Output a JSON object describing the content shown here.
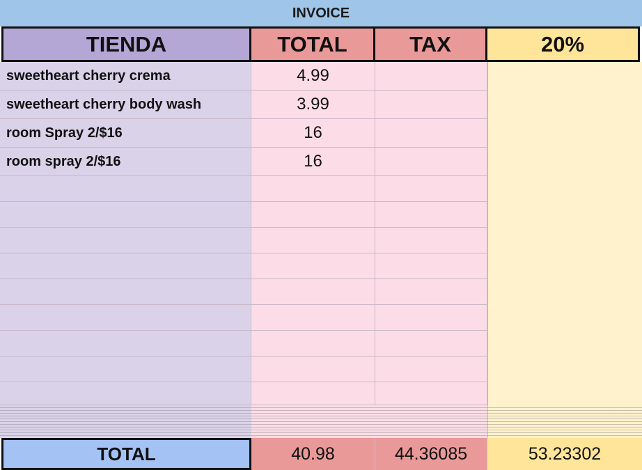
{
  "title": "INVOICE",
  "headers": {
    "store": "TIENDA",
    "total": "TOTAL",
    "tax": "TAX",
    "percent": "20%"
  },
  "rows": [
    {
      "item": "sweetheart cherry crema",
      "total": "4.99",
      "tax": ""
    },
    {
      "item": "sweetheart cherry body wash",
      "total": "3.99",
      "tax": ""
    },
    {
      "item": "room Spray 2/$16",
      "total": "16",
      "tax": ""
    },
    {
      "item": "room spray 2/$16",
      "total": "16",
      "tax": ""
    },
    {
      "item": "",
      "total": "",
      "tax": ""
    },
    {
      "item": "",
      "total": "",
      "tax": ""
    },
    {
      "item": "",
      "total": "",
      "tax": ""
    },
    {
      "item": "",
      "total": "",
      "tax": ""
    },
    {
      "item": "",
      "total": "",
      "tax": ""
    },
    {
      "item": "",
      "total": "",
      "tax": ""
    },
    {
      "item": "",
      "total": "",
      "tax": ""
    },
    {
      "item": "",
      "total": "",
      "tax": ""
    },
    {
      "item": "",
      "total": "",
      "tax": ""
    }
  ],
  "footer": {
    "label": "TOTAL",
    "total": "40.98",
    "tax": "44.36085",
    "percent": "53.23302"
  },
  "colors": {
    "title_bg": "#9fc5e8",
    "store_header_bg": "#b4a7d6",
    "store_body_bg": "#d9d2e9",
    "total_header_bg": "#ea9999",
    "total_body_bg": "#fcdde7",
    "percent_header_bg": "#ffe599",
    "percent_body_bg": "#fff2cc",
    "footer_label_bg": "#a4c2f4"
  }
}
